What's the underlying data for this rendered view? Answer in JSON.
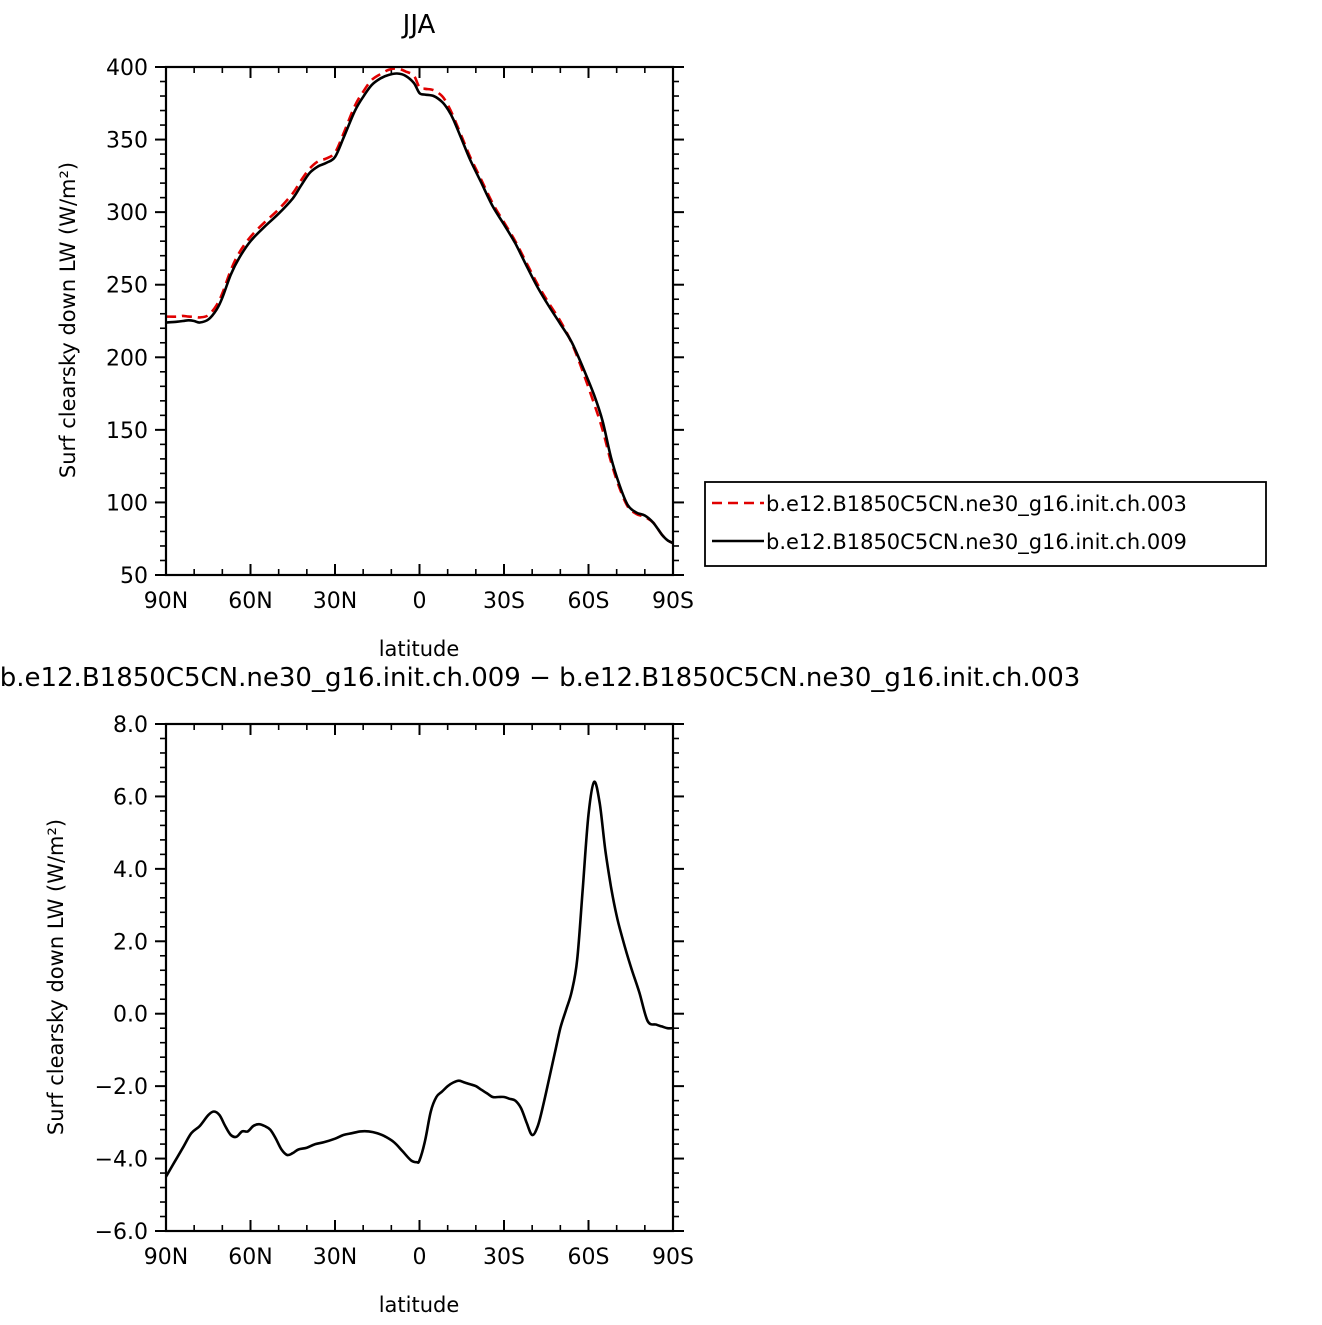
{
  "chart_data": [
    {
      "type": "line",
      "title": "JJA",
      "xlabel": "latitude",
      "ylabel": "Surf clearsky down LW (W/m²)",
      "xlim": [
        90,
        -90
      ],
      "ylim": [
        50,
        400
      ],
      "xticks": [
        90,
        60,
        30,
        0,
        -30,
        -60,
        -90
      ],
      "xtick_labels": [
        "90N",
        "60N",
        "30N",
        "0",
        "30S",
        "60S",
        "90S"
      ],
      "yticks": [
        50,
        100,
        150,
        200,
        250,
        300,
        350,
        400
      ],
      "ytick_labels": [
        "50",
        "100",
        "150",
        "200",
        "250",
        "300",
        "350",
        "400"
      ],
      "legend_position": "right",
      "x": [
        90,
        86,
        84,
        82,
        80,
        78,
        75,
        72,
        70,
        67,
        64,
        60,
        55,
        50,
        45,
        42,
        39,
        36,
        33,
        30,
        27,
        23,
        20,
        17,
        14,
        11,
        8,
        5,
        2,
        0,
        -2,
        -5,
        -8,
        -10,
        -12,
        -15,
        -18,
        -22,
        -26,
        -30,
        -34,
        -38,
        -42,
        -46,
        -50,
        -54,
        -58,
        -62,
        -65,
        -68,
        -71,
        -74,
        -77,
        -80,
        -83,
        -86,
        -88,
        -90
      ],
      "series": [
        {
          "name": "b.e12.B1850C5CN.ne30_g16.init.ch.003",
          "color": "#e00000",
          "dash": "dashed",
          "values": [
            228,
            228,
            228.5,
            228,
            228,
            227.5,
            229,
            236,
            244,
            260,
            272,
            283,
            293,
            302,
            313,
            322,
            330,
            335,
            337,
            341,
            354,
            373,
            383,
            391,
            395,
            398,
            399,
            397,
            394,
            386,
            385,
            384,
            380,
            374,
            366,
            352,
            338,
            322,
            306,
            293,
            280,
            265,
            250,
            237,
            225,
            210,
            190,
            168,
            150,
            128,
            110,
            97,
            92,
            90,
            86,
            78,
            74,
            72
          ]
        },
        {
          "name": "b.e12.B1850C5CN.ne30_g16.init.ch.009",
          "color": "#000000",
          "dash": "solid",
          "values": [
            224,
            224.5,
            225,
            225.5,
            225,
            224,
            226,
            233,
            241,
            257,
            268.5,
            280,
            290,
            299,
            309.5,
            318.5,
            327,
            331.5,
            334,
            338,
            351,
            369.5,
            379.5,
            387.5,
            392,
            394.5,
            395.5,
            394,
            389,
            382,
            381,
            380,
            376,
            371,
            364,
            350,
            336,
            320,
            304,
            291.5,
            278.5,
            263,
            248,
            235,
            223,
            210.5,
            193,
            174,
            156,
            131,
            112,
            98,
            93,
            91,
            86,
            78,
            74,
            72
          ]
        }
      ]
    },
    {
      "type": "line",
      "title": "b.e12.B1850C5CN.ne30_g16.init.ch.009 − b.e12.B1850C5CN.ne30_g16.init.ch.003",
      "xlabel": "latitude",
      "ylabel": "Surf clearsky down LW (W/m²)",
      "xlim": [
        90,
        -90
      ],
      "ylim": [
        -6,
        8
      ],
      "xticks": [
        90,
        60,
        30,
        0,
        -30,
        -60,
        -90
      ],
      "xtick_labels": [
        "90N",
        "60N",
        "30N",
        "0",
        "30S",
        "60S",
        "90S"
      ],
      "yticks": [
        -6,
        -4,
        -2,
        0,
        2,
        4,
        6,
        8
      ],
      "ytick_labels": [
        "−6.0",
        "−4.0",
        "−2.0",
        "0.0",
        "2.0",
        "4.0",
        "6.0",
        "8.0"
      ],
      "x": [
        90,
        87,
        84,
        81,
        78,
        75,
        73,
        71,
        69,
        67,
        65,
        63,
        61,
        59,
        57,
        55,
        53,
        51,
        49,
        47,
        45,
        43,
        40,
        37,
        34,
        30,
        27,
        24,
        21,
        18,
        15,
        12,
        9,
        6,
        3,
        1,
        0,
        -2,
        -4,
        -6,
        -8,
        -10,
        -12,
        -14,
        -16,
        -18,
        -20,
        -22,
        -24,
        -26,
        -28,
        -30,
        -32,
        -34,
        -36,
        -38,
        -40,
        -42,
        -44,
        -46,
        -48,
        -50,
        -52,
        -54,
        -56,
        -58,
        -60,
        -62,
        -64,
        -66,
        -68,
        -70,
        -72,
        -75,
        -78,
        -81,
        -84,
        -86,
        -88,
        -90
      ],
      "series": [
        {
          "name": "",
          "color": "#000000",
          "dash": "solid",
          "values": [
            -4.5,
            -4.1,
            -3.7,
            -3.3,
            -3.1,
            -2.8,
            -2.7,
            -2.8,
            -3.1,
            -3.35,
            -3.4,
            -3.25,
            -3.25,
            -3.1,
            -3.05,
            -3.1,
            -3.2,
            -3.45,
            -3.75,
            -3.9,
            -3.85,
            -3.75,
            -3.7,
            -3.6,
            -3.55,
            -3.45,
            -3.35,
            -3.3,
            -3.25,
            -3.25,
            -3.3,
            -3.4,
            -3.55,
            -3.8,
            -4.05,
            -4.1,
            -4.05,
            -3.5,
            -2.7,
            -2.3,
            -2.15,
            -2.0,
            -1.9,
            -1.85,
            -1.9,
            -1.95,
            -2.0,
            -2.1,
            -2.2,
            -2.3,
            -2.3,
            -2.3,
            -2.35,
            -2.4,
            -2.6,
            -3.0,
            -3.35,
            -3.1,
            -2.5,
            -1.8,
            -1.1,
            -0.4,
            0.1,
            0.6,
            1.5,
            3.5,
            5.5,
            6.4,
            5.8,
            4.5,
            3.5,
            2.7,
            2.1,
            1.3,
            0.6,
            -0.2,
            -0.3,
            -0.35,
            -0.4,
            -0.4
          ]
        }
      ]
    }
  ]
}
